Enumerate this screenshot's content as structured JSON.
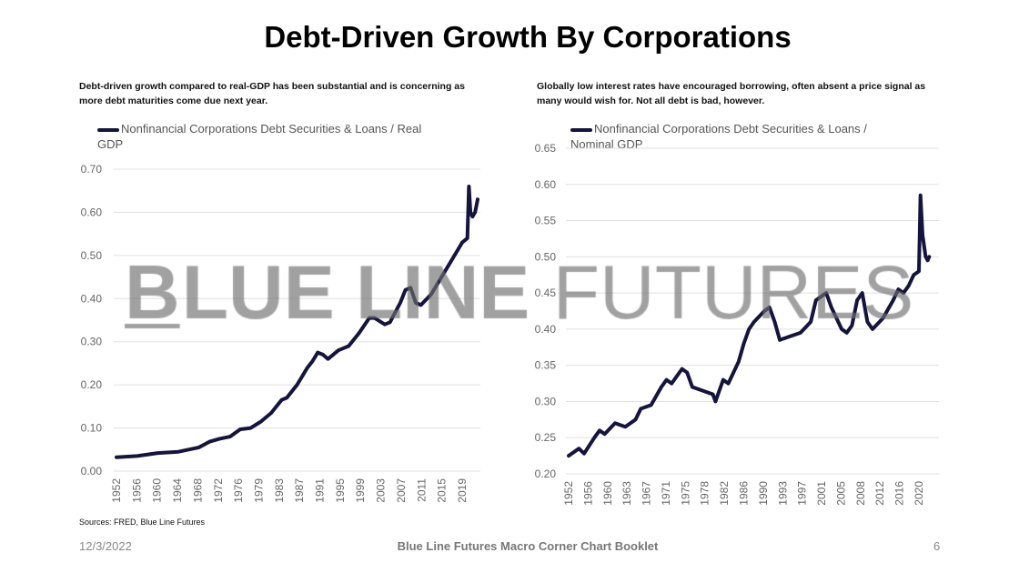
{
  "header": {
    "title": "Debt-Driven Growth By Corporations"
  },
  "watermark": {
    "first_letter": "B",
    "rest_bold": "LUE LINE ",
    "rest_light": "FUTURES"
  },
  "footer": {
    "date": "12/3/2022",
    "booklet": "Blue Line Futures Macro Corner Chart Booklet",
    "page": "6",
    "sources": "Sources: FRED, Blue Line Futures"
  },
  "colors": {
    "line": "#14143c",
    "grid": "#e0e0e0"
  },
  "chart_data": [
    {
      "type": "line",
      "subtitle": "Debt-driven growth compared to real-GDP has been substantial and is concerning as more debt maturities come due next year.",
      "legend": "Nonfinancial Corporations Debt Securities & Loans / Real GDP",
      "legend_position": "top",
      "ylim": [
        0,
        0.7
      ],
      "yticks": [
        "0.00",
        "0.10",
        "0.20",
        "0.30",
        "0.40",
        "0.50",
        "0.60",
        "0.70"
      ],
      "ytick_values": [
        0,
        0.1,
        0.2,
        0.3,
        0.4,
        0.5,
        0.6,
        0.7
      ],
      "xticks": [
        "1952",
        "1956",
        "1960",
        "1964",
        "1968",
        "1972",
        "1976",
        "1979",
        "1983",
        "1987",
        "1991",
        "1995",
        "1999",
        "2003",
        "2007",
        "2011",
        "2015",
        "2019"
      ],
      "xlim": [
        1952,
        2022.5
      ],
      "x": [
        1952,
        1956,
        1960,
        1964,
        1968,
        1970,
        1972,
        1974,
        1976,
        1978,
        1980,
        1982,
        1984,
        1985,
        1987,
        1989,
        1990,
        1991,
        1992,
        1993,
        1995,
        1997,
        1999,
        2001,
        2002,
        2004,
        2005,
        2007,
        2008,
        2009,
        2010,
        2011,
        2013,
        2015,
        2017,
        2019,
        2020,
        2020.3,
        2020.6,
        2021,
        2021.5,
        2022
      ],
      "values": [
        0.032,
        0.035,
        0.042,
        0.045,
        0.055,
        0.068,
        0.075,
        0.08,
        0.097,
        0.1,
        0.115,
        0.135,
        0.165,
        0.17,
        0.2,
        0.24,
        0.255,
        0.275,
        0.27,
        0.26,
        0.28,
        0.29,
        0.32,
        0.355,
        0.355,
        0.34,
        0.345,
        0.39,
        0.42,
        0.425,
        0.39,
        0.385,
        0.41,
        0.45,
        0.49,
        0.53,
        0.54,
        0.66,
        0.6,
        0.59,
        0.6,
        0.63
      ]
    },
    {
      "type": "line",
      "subtitle": "Globally low interest rates have encouraged borrowing, often absent a price signal as many would wish for. Not all debt is bad, however.",
      "legend": "Nonfinancial Corporations Debt Securities & Loans / Nominal GDP",
      "legend_position": "top",
      "ylim": [
        0.2,
        0.65
      ],
      "yticks": [
        "0.20",
        "0.25",
        "0.30",
        "0.35",
        "0.40",
        "0.45",
        "0.50",
        "0.55",
        "0.60",
        "0.65"
      ],
      "ytick_values": [
        0.2,
        0.25,
        0.3,
        0.35,
        0.4,
        0.45,
        0.5,
        0.55,
        0.6,
        0.65
      ],
      "xticks": [
        "1952",
        "1956",
        "1960",
        "1963",
        "1967",
        "1971",
        "1975",
        "1978",
        "1982",
        "1986",
        "1990",
        "1993",
        "1997",
        "2001",
        "2005",
        "2008",
        "2012",
        "2016",
        "2020"
      ],
      "xlim": [
        1952,
        2023.5
      ],
      "x": [
        1952,
        1954,
        1955,
        1957,
        1958,
        1959,
        1961,
        1963,
        1965,
        1966,
        1968,
        1970,
        1971,
        1972,
        1973,
        1974,
        1975,
        1976,
        1978,
        1980,
        1980.5,
        1981,
        1982,
        1983,
        1985,
        1986,
        1987,
        1988,
        1990,
        1991,
        1992,
        1993,
        1995,
        1997,
        1999,
        2000,
        2002,
        2003,
        2005,
        2006,
        2007,
        2008,
        2009,
        2010,
        2011,
        2013,
        2015,
        2016,
        2017,
        2018,
        2019,
        2020,
        2020.3,
        2020.7,
        2021.3,
        2021.7,
        2022
      ],
      "values": [
        0.225,
        0.235,
        0.228,
        0.25,
        0.26,
        0.255,
        0.27,
        0.265,
        0.275,
        0.29,
        0.295,
        0.32,
        0.33,
        0.325,
        0.335,
        0.345,
        0.34,
        0.32,
        0.315,
        0.31,
        0.3,
        0.31,
        0.33,
        0.325,
        0.355,
        0.38,
        0.4,
        0.41,
        0.425,
        0.43,
        0.41,
        0.385,
        0.39,
        0.395,
        0.41,
        0.44,
        0.45,
        0.43,
        0.4,
        0.395,
        0.405,
        0.44,
        0.45,
        0.41,
        0.4,
        0.415,
        0.44,
        0.455,
        0.45,
        0.46,
        0.475,
        0.48,
        0.585,
        0.53,
        0.5,
        0.495,
        0.5
      ]
    }
  ]
}
